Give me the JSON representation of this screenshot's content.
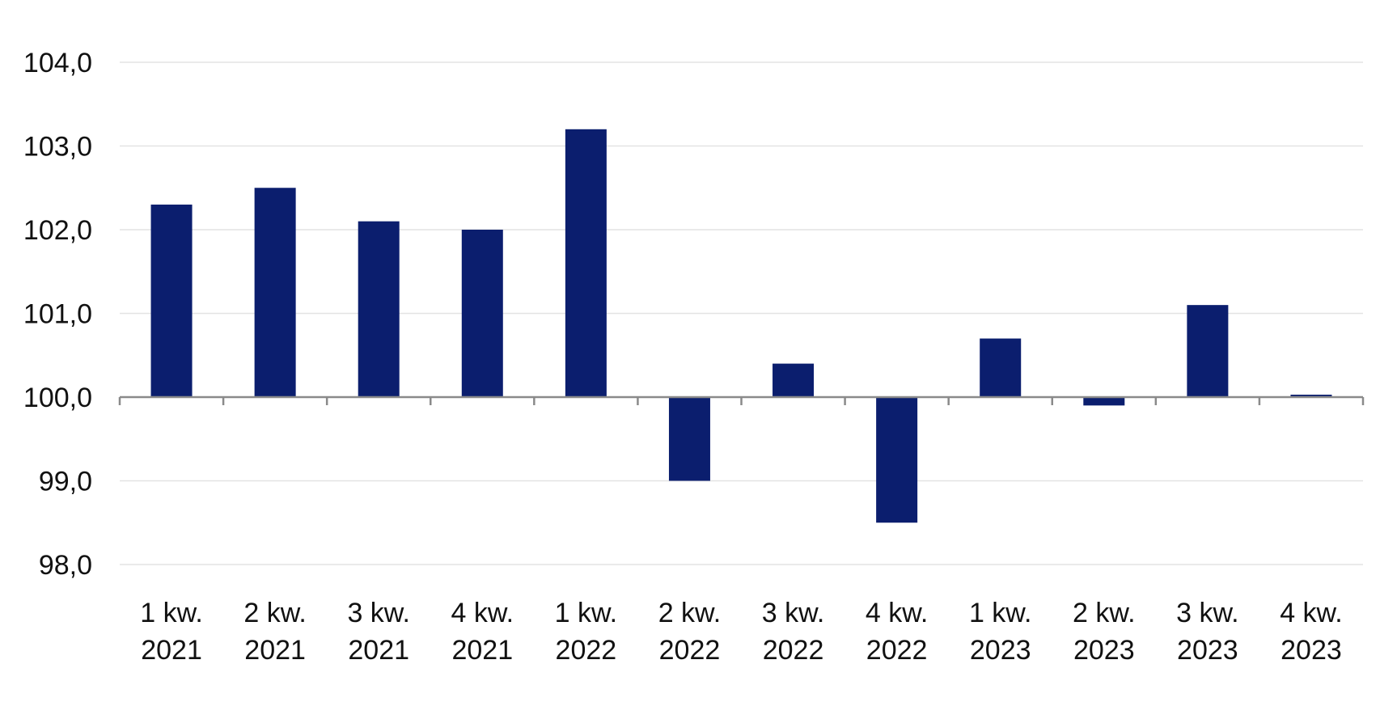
{
  "chart_data": {
    "type": "bar",
    "title": "",
    "xlabel": "",
    "ylabel": "",
    "categories": [
      {
        "line1": "1 kw.",
        "line2": "2021"
      },
      {
        "line1": "2 kw.",
        "line2": "2021"
      },
      {
        "line1": "3 kw.",
        "line2": "2021"
      },
      {
        "line1": "4 kw.",
        "line2": "2021"
      },
      {
        "line1": "1 kw.",
        "line2": "2022"
      },
      {
        "line1": "2 kw.",
        "line2": "2022"
      },
      {
        "line1": "3 kw.",
        "line2": "2022"
      },
      {
        "line1": "4 kw.",
        "line2": "2022"
      },
      {
        "line1": "1 kw.",
        "line2": "2023"
      },
      {
        "line1": "2 kw.",
        "line2": "2023"
      },
      {
        "line1": "3 kw.",
        "line2": "2023"
      },
      {
        "line1": "4 kw.",
        "line2": "2023"
      }
    ],
    "values": [
      102.3,
      102.5,
      102.1,
      102.0,
      103.2,
      99.0,
      100.4,
      98.5,
      100.7,
      99.9,
      101.1,
      100.0
    ],
    "baseline": 100.0,
    "ylim": [
      98.0,
      104.0
    ],
    "yticks": [
      {
        "value": 98,
        "label": "98,0"
      },
      {
        "value": 99,
        "label": "99,0"
      },
      {
        "value": 100,
        "label": "100,0"
      },
      {
        "value": 101,
        "label": "101,0"
      },
      {
        "value": 102,
        "label": "102,0"
      },
      {
        "value": 103,
        "label": "103,0"
      },
      {
        "value": 104,
        "label": "104,0"
      }
    ],
    "grid": true,
    "legend": "none",
    "colors": {
      "bar": "#0b1e6e",
      "grid": "#e3e3e3",
      "axis": "#8a8a8a"
    }
  }
}
